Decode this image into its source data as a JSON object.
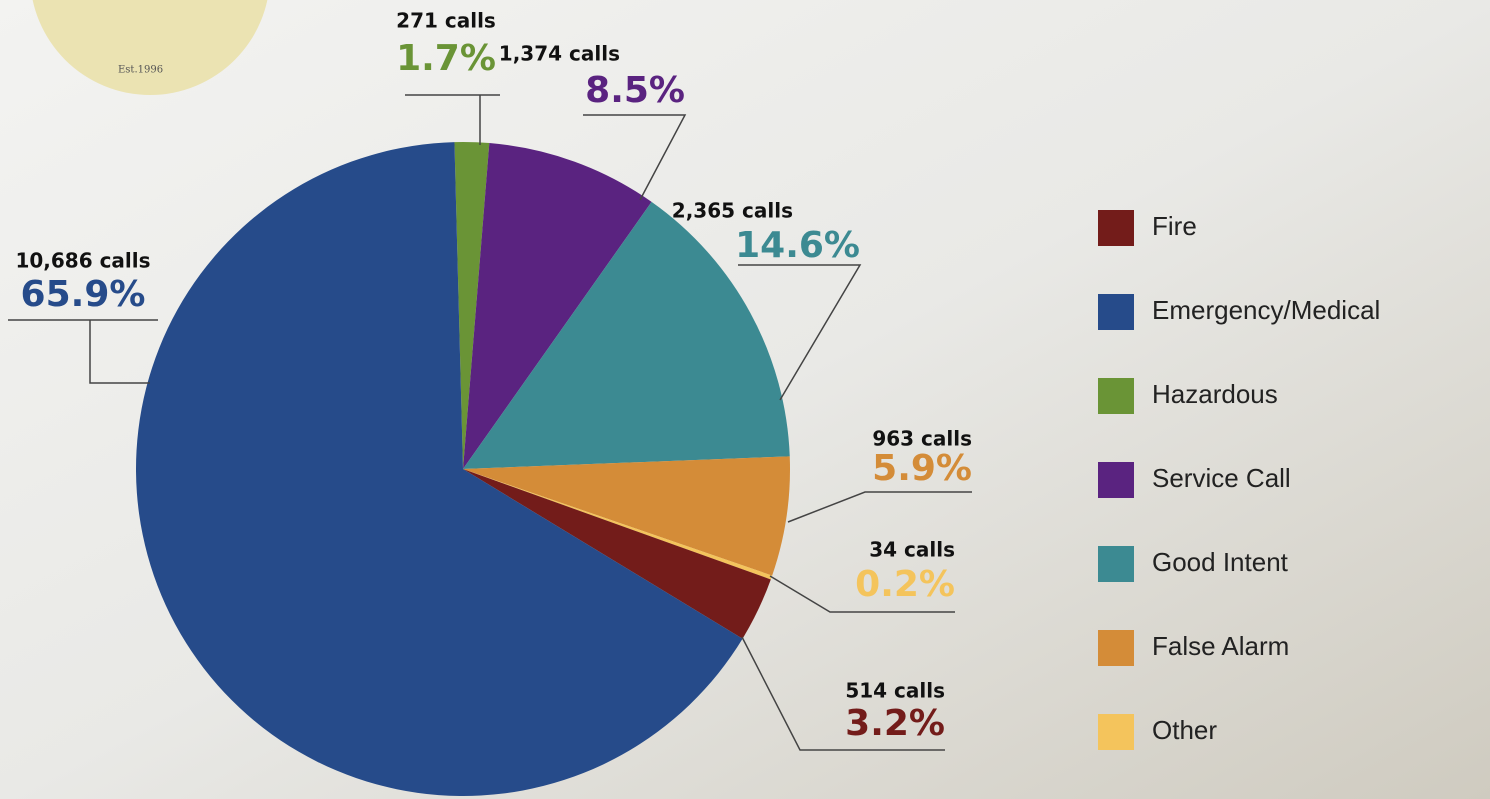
{
  "logo": {
    "text": "Est.1996"
  },
  "chart_data": {
    "type": "pie",
    "categories": [
      "Fire",
      "Emergency/Medical",
      "Hazardous",
      "Service Call",
      "Good Intent",
      "False Alarm",
      "Other"
    ],
    "values": [
      3.2,
      65.9,
      1.7,
      8.5,
      14.6,
      5.9,
      0.2
    ],
    "value_labels": [
      "3.2%",
      "65.9%",
      "1.7%",
      "8.5%",
      "14.6%",
      "5.9%",
      "0.2%"
    ],
    "call_labels": [
      "514 calls",
      "10,686 calls",
      "271 calls",
      "1,374 calls",
      "2,365 calls",
      "963 calls",
      "34 calls"
    ],
    "colors": [
      "#731c1a",
      "#264b8a",
      "#6a9436",
      "#5a2380",
      "#3c8a92",
      "#d48c38",
      "#f4c45c"
    ],
    "legend": "right"
  }
}
